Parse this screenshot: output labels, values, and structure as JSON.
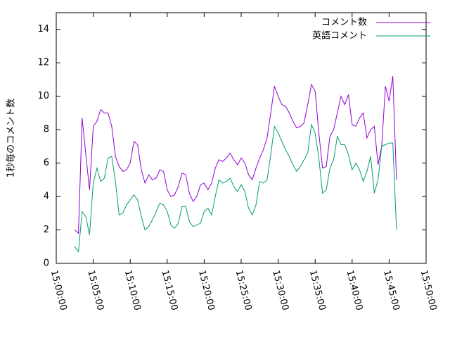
{
  "chart_data": {
    "type": "line",
    "y_label": "1秒毎のコメント数",
    "x": [
      "15:02:30",
      "15:03:00",
      "15:03:30",
      "15:04:00",
      "15:04:30",
      "15:05:00",
      "15:05:30",
      "15:06:00",
      "15:06:30",
      "15:07:00",
      "15:07:30",
      "15:08:00",
      "15:08:30",
      "15:09:00",
      "15:09:30",
      "15:10:00",
      "15:10:30",
      "15:11:00",
      "15:11:30",
      "15:12:00",
      "15:12:30",
      "15:13:00",
      "15:13:30",
      "15:14:00",
      "15:14:30",
      "15:15:00",
      "15:15:30",
      "15:16:00",
      "15:16:30",
      "15:17:00",
      "15:17:30",
      "15:18:00",
      "15:18:30",
      "15:19:00",
      "15:19:30",
      "15:20:00",
      "15:20:30",
      "15:21:00",
      "15:21:30",
      "15:22:00",
      "15:22:30",
      "15:23:00",
      "15:23:30",
      "15:24:00",
      "15:24:30",
      "15:25:00",
      "15:25:30",
      "15:26:00",
      "15:26:30",
      "15:27:00",
      "15:27:30",
      "15:28:00",
      "15:28:30",
      "15:29:00",
      "15:29:30",
      "15:30:00",
      "15:30:30",
      "15:31:00",
      "15:31:30",
      "15:32:00",
      "15:32:30",
      "15:33:00",
      "15:33:30",
      "15:34:00",
      "15:34:30",
      "15:35:00",
      "15:35:30",
      "15:36:00",
      "15:36:30",
      "15:37:00",
      "15:37:30",
      "15:38:00",
      "15:38:30",
      "15:39:00",
      "15:39:30",
      "15:40:00",
      "15:40:30",
      "15:41:00",
      "15:41:30",
      "15:42:00",
      "15:42:30",
      "15:43:00",
      "15:43:30",
      "15:44:00",
      "15:44:30",
      "15:45:00",
      "15:45:30",
      "15:46:00"
    ],
    "series": [
      {
        "name": "コメント数",
        "color": "#9400d3",
        "values": [
          2.0,
          1.8,
          8.7,
          6.5,
          4.4,
          8.2,
          8.5,
          9.2,
          9.0,
          9.0,
          8.2,
          6.4,
          5.8,
          5.5,
          5.6,
          6.0,
          7.3,
          7.1,
          5.6,
          4.8,
          5.3,
          5.0,
          5.1,
          5.6,
          5.5,
          4.4,
          4.0,
          4.1,
          4.6,
          5.4,
          5.3,
          4.2,
          3.7,
          4.0,
          4.7,
          4.8,
          4.4,
          4.8,
          5.7,
          6.2,
          6.1,
          6.3,
          6.6,
          6.2,
          5.9,
          6.3,
          6.0,
          5.3,
          5.0,
          5.7,
          6.3,
          6.8,
          7.5,
          9.0,
          10.6,
          10.0,
          9.5,
          9.4,
          9.0,
          8.5,
          8.1,
          8.2,
          8.4,
          9.5,
          10.7,
          10.3,
          7.8,
          5.7,
          5.8,
          7.6,
          8.0,
          9.0,
          10.0,
          9.5,
          10.1,
          8.3,
          8.2,
          8.7,
          9.0,
          7.5,
          8.0,
          8.2,
          5.9,
          7.0,
          10.6,
          9.7,
          11.2,
          5.0
        ]
      },
      {
        "name": "英語コメント",
        "color": "#009e73",
        "values": [
          1.0,
          0.7,
          3.1,
          2.8,
          1.7,
          4.8,
          5.7,
          4.9,
          5.1,
          6.3,
          6.4,
          4.9,
          2.9,
          3.0,
          3.5,
          3.8,
          4.1,
          3.8,
          2.8,
          2.0,
          2.2,
          2.6,
          3.1,
          3.6,
          3.5,
          3.1,
          2.3,
          2.1,
          2.4,
          3.4,
          3.4,
          2.5,
          2.2,
          2.3,
          2.4,
          3.1,
          3.3,
          2.9,
          4.0,
          5.0,
          4.8,
          4.9,
          5.1,
          4.6,
          4.3,
          4.7,
          4.3,
          3.3,
          2.9,
          3.5,
          4.9,
          4.8,
          5.0,
          6.5,
          8.2,
          7.8,
          7.3,
          6.8,
          6.4,
          5.9,
          5.5,
          5.8,
          6.2,
          6.6,
          8.3,
          7.8,
          6.3,
          4.2,
          4.4,
          5.7,
          6.2,
          7.6,
          7.1,
          7.1,
          6.5,
          5.6,
          6.0,
          5.6,
          4.9,
          5.5,
          6.4,
          4.2,
          5.0,
          7.0,
          7.1,
          7.2,
          7.2,
          2.0
        ]
      }
    ],
    "xlim": [
      "15:00:00",
      "15:50:00"
    ],
    "xticks": [
      "15:00:00",
      "15:05:00",
      "15:10:00",
      "15:15:00",
      "15:20:00",
      "15:25:00",
      "15:30:00",
      "15:35:00",
      "15:40:00",
      "15:45:00",
      "15:50:00"
    ],
    "ylim": [
      0,
      15
    ],
    "yticks": [
      0,
      2,
      4,
      6,
      8,
      10,
      12,
      14
    ],
    "legend": "upper right"
  }
}
